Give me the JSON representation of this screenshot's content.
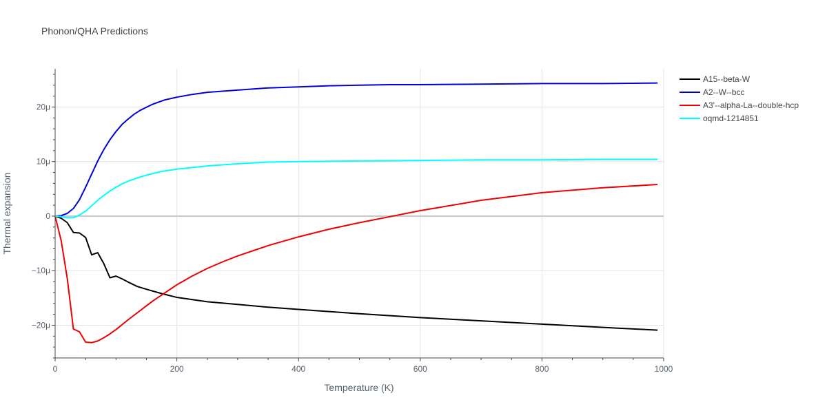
{
  "chart_data": {
    "type": "line",
    "title": "Phonon/QHA Predictions",
    "xlabel": "Temperature (K)",
    "ylabel": "Thermal expansion",
    "xlim": [
      0,
      1000
    ],
    "ylim": [
      -26,
      27
    ],
    "x_ticks": [
      0,
      200,
      400,
      600,
      800,
      1000
    ],
    "x_tick_labels": [
      "0",
      "200",
      "400",
      "600",
      "800",
      "1000"
    ],
    "y_ticks": [
      -20,
      -10,
      0,
      10,
      20
    ],
    "y_tick_labels": [
      "−20μ",
      "−10μ",
      "0",
      "10μ",
      "20μ"
    ],
    "y_unit": "μ",
    "grid": true,
    "legend_position": "right",
    "series": [
      {
        "name": "A15--beta-W",
        "color": "#000000",
        "x": [
          0,
          10,
          20,
          30,
          40,
          50,
          60,
          70,
          80,
          90,
          100,
          110,
          120,
          135,
          150,
          175,
          200,
          250,
          300,
          350,
          400,
          500,
          600,
          700,
          800,
          900,
          990
        ],
        "y": [
          0,
          -0.4,
          -1.2,
          -3.0,
          -3.1,
          -3.9,
          -7.1,
          -6.7,
          -8.7,
          -11.3,
          -11.0,
          -11.5,
          -12.1,
          -12.9,
          -13.4,
          -14.2,
          -14.9,
          -15.7,
          -16.2,
          -16.7,
          -17.1,
          -17.9,
          -18.6,
          -19.2,
          -19.8,
          -20.4,
          -20.9
        ]
      },
      {
        "name": "A2--W--bcc",
        "color": "#0000dd",
        "x": [
          0,
          10,
          20,
          30,
          40,
          50,
          60,
          70,
          80,
          90,
          100,
          110,
          120,
          130,
          140,
          160,
          180,
          200,
          225,
          250,
          300,
          350,
          400,
          450,
          500,
          550,
          600,
          700,
          800,
          900,
          990
        ],
        "y": [
          0,
          0.1,
          0.5,
          1.4,
          3.0,
          5.3,
          7.7,
          10.1,
          12.2,
          14.0,
          15.5,
          16.8,
          17.8,
          18.7,
          19.4,
          20.5,
          21.3,
          21.8,
          22.3,
          22.7,
          23.1,
          23.5,
          23.7,
          23.9,
          24.0,
          24.1,
          24.1,
          24.2,
          24.3,
          24.3,
          24.4
        ]
      },
      {
        "name": "A3'--alpha-La--double-hcp",
        "color": "#ee0000",
        "x": [
          0,
          10,
          20,
          30,
          40,
          50,
          60,
          70,
          80,
          90,
          100,
          120,
          140,
          160,
          180,
          200,
          225,
          250,
          275,
          300,
          350,
          400,
          450,
          500,
          550,
          600,
          700,
          800,
          900,
          990
        ],
        "y": [
          0,
          -4.5,
          -11.5,
          -20.7,
          -21.2,
          -23.1,
          -23.2,
          -22.9,
          -22.3,
          -21.6,
          -20.8,
          -19.0,
          -17.3,
          -15.6,
          -14.1,
          -12.6,
          -11.0,
          -9.6,
          -8.4,
          -7.3,
          -5.4,
          -3.8,
          -2.4,
          -1.2,
          -0.1,
          1.0,
          2.9,
          4.3,
          5.2,
          5.8
        ]
      },
      {
        "name": "oqmd-1214851",
        "color": "#00ffff",
        "x": [
          0,
          10,
          20,
          30,
          40,
          50,
          60,
          70,
          80,
          90,
          100,
          110,
          120,
          135,
          150,
          175,
          200,
          250,
          300,
          350,
          400,
          500,
          600,
          700,
          800,
          900,
          990
        ],
        "y": [
          0,
          -0.1,
          -0.3,
          -0.3,
          0.2,
          0.9,
          1.9,
          2.9,
          3.8,
          4.6,
          5.3,
          5.9,
          6.4,
          7.0,
          7.5,
          8.2,
          8.6,
          9.2,
          9.6,
          9.9,
          10.0,
          10.1,
          10.2,
          10.3,
          10.3,
          10.4,
          10.4
        ]
      }
    ]
  }
}
